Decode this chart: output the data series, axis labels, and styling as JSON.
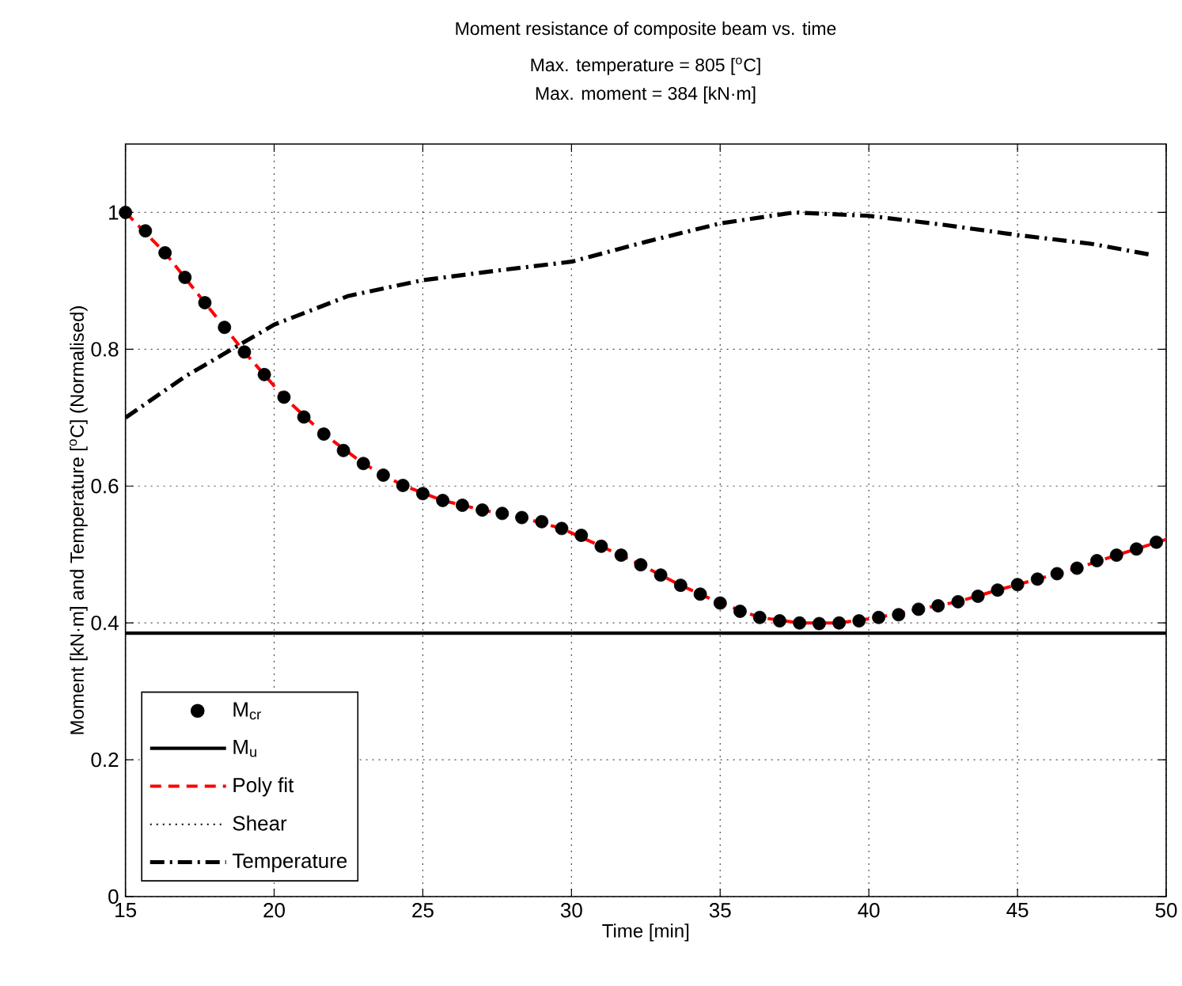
{
  "chart_data": {
    "type": "line",
    "title": "Moment resistance of composite beam vs. time",
    "subtitle": "Max. temperature = 805 [$^{o}$C]",
    "annotations": [
      "Max. moment = 384 [kN·m]"
    ],
    "xlabel": "Time [min]",
    "ylabel": "Moment [kN·m] and Temperature [$^{o}$C] (Normalised)",
    "xlim": [
      15,
      50
    ],
    "ylim": [
      0,
      1.1
    ],
    "xticks": [
      15,
      20,
      25,
      30,
      35,
      40,
      45,
      50
    ],
    "yticks": [
      0,
      0.2,
      0.4,
      0.6,
      0.8,
      1
    ],
    "grid": true,
    "legend": "bottom left",
    "marker": "circle",
    "series": [
      {
        "name": "M$_{cr}$",
        "type": "scatter",
        "color": "#000000",
        "x": [
          15,
          15.67,
          16.33,
          17,
          17.67,
          18.33,
          19,
          19.67,
          20.33,
          21,
          21.67,
          22.33,
          23,
          23.67,
          24.33,
          25,
          25.67,
          26.33,
          27,
          27.67,
          28.33,
          29,
          29.67,
          30.33,
          31,
          31.67,
          32.33,
          33,
          33.67,
          34.33,
          35,
          35.67,
          36.33,
          37,
          37.67,
          38.33,
          39,
          39.67,
          40.33,
          41,
          41.67,
          42.33,
          43,
          43.67,
          44.33,
          45,
          45.67,
          46.33,
          47,
          47.67,
          48.33,
          49,
          49.67
        ],
        "values": [
          1.0,
          0.973,
          0.941,
          0.905,
          0.868,
          0.832,
          0.796,
          0.763,
          0.73,
          0.701,
          0.676,
          0.652,
          0.633,
          0.616,
          0.601,
          0.589,
          0.579,
          0.572,
          0.565,
          0.56,
          0.554,
          0.548,
          0.538,
          0.528,
          0.512,
          0.499,
          0.485,
          0.47,
          0.455,
          0.442,
          0.429,
          0.417,
          0.408,
          0.403,
          0.4,
          0.399,
          0.4,
          0.403,
          0.408,
          0.412,
          0.42,
          0.425,
          0.431,
          0.439,
          0.448,
          0.456,
          0.464,
          0.472,
          0.48,
          0.491,
          0.499,
          0.508,
          0.518
        ]
      },
      {
        "name": "M$_{u}$",
        "marker": "none",
        "line_style": "solid",
        "color": "#000000",
        "x": [
          15,
          50
        ],
        "values": [
          0.385,
          0.385
        ]
      },
      {
        "name": "Poly fit",
        "marker": "none",
        "line_style": "dashed",
        "color": "#ff0000",
        "x": [
          15,
          16.33,
          17.67,
          19,
          20.33,
          21.67,
          23,
          24.33,
          25.67,
          27,
          28.33,
          29.67,
          31,
          32.33,
          33.67,
          35,
          36.33,
          37.67,
          39,
          40.33,
          41.67,
          43,
          44.33,
          45.67,
          47,
          48.33,
          50
        ],
        "values": [
          1.0,
          0.941,
          0.868,
          0.796,
          0.73,
          0.676,
          0.633,
          0.601,
          0.579,
          0.565,
          0.554,
          0.538,
          0.512,
          0.485,
          0.455,
          0.429,
          0.408,
          0.4,
          0.4,
          0.408,
          0.42,
          0.431,
          0.448,
          0.464,
          0.48,
          0.499,
          0.522
        ]
      },
      {
        "name": "Shear",
        "marker": "none",
        "line_style": "dotted",
        "color": "#000000",
        "values": [
          null
        ]
      },
      {
        "name": "Temperature",
        "marker": "none",
        "line_style": "dashdot",
        "color": "#000000",
        "x": [
          15,
          17,
          20,
          22.5,
          25,
          27.5,
          30,
          32.5,
          35,
          37.5,
          40,
          42.5,
          45,
          47.5,
          49.5
        ],
        "values": [
          0.7,
          0.76,
          0.836,
          0.878,
          0.901,
          0.915,
          0.928,
          0.957,
          0.984,
          1.0,
          0.995,
          0.982,
          0.967,
          0.954,
          0.938
        ]
      }
    ]
  }
}
